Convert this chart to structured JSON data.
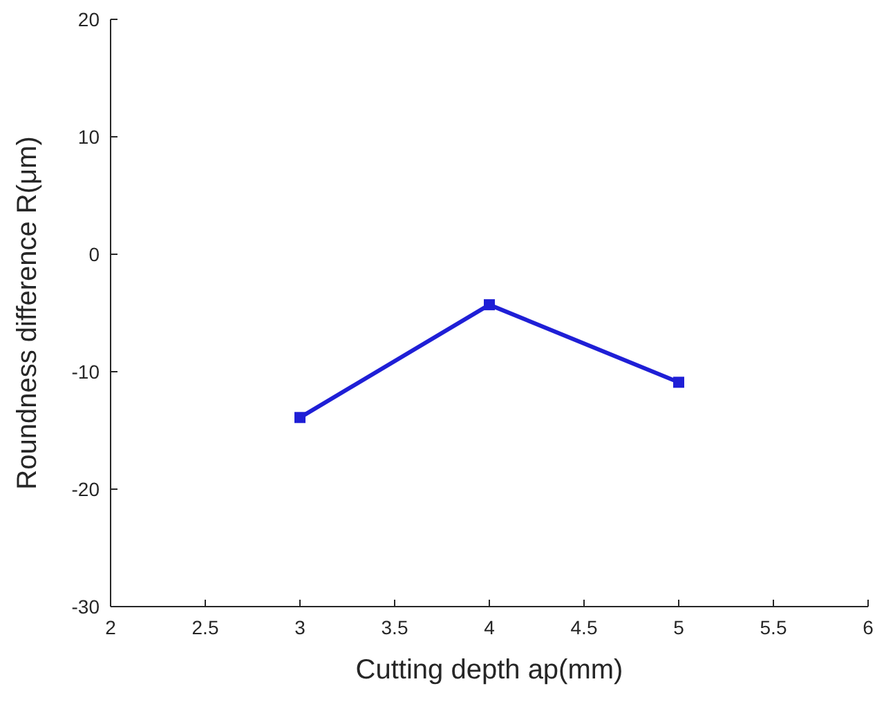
{
  "chart_data": {
    "type": "line",
    "xlabel": "Cutting depth ap(mm)",
    "ylabel": "Roundness difference R(μm)",
    "x": [
      3,
      4,
      5
    ],
    "series": [
      {
        "color": "#1f1fd6",
        "values": [
          -13.9,
          -4.3,
          -10.9
        ]
      }
    ],
    "xlim": [
      2,
      6
    ],
    "xticks": [
      2,
      2.5,
      3,
      3.5,
      4,
      4.5,
      5,
      5.5,
      6
    ],
    "ylim": [
      -30,
      20
    ],
    "yticks": [
      -30,
      -20,
      -10,
      0,
      10,
      20
    ],
    "marker": "square",
    "line_style": "solid",
    "grid": false
  }
}
